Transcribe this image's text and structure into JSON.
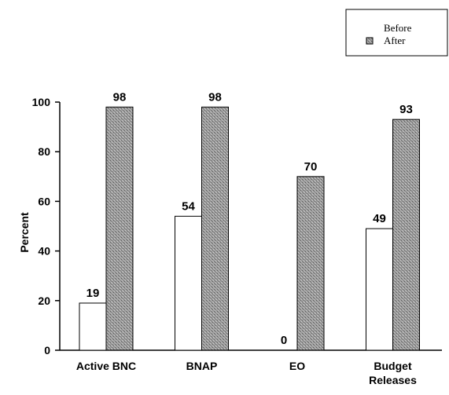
{
  "chart_data": {
    "type": "bar",
    "ylabel": "Percent",
    "ylim": [
      0,
      100
    ],
    "yticks": [
      0,
      20,
      40,
      60,
      80,
      100
    ],
    "categories": [
      "Active BNC",
      "BNAP",
      "EO",
      "Budget\nReleases"
    ],
    "series": [
      {
        "name": "Before",
        "values": [
          19,
          54,
          0,
          49
        ]
      },
      {
        "name": "After",
        "values": [
          98,
          98,
          70,
          93
        ]
      }
    ],
    "legend": "top-right",
    "colors": {
      "before_fill": "#ffffff",
      "after_fill": "#a6a6a6",
      "outline": "#000000"
    }
  }
}
